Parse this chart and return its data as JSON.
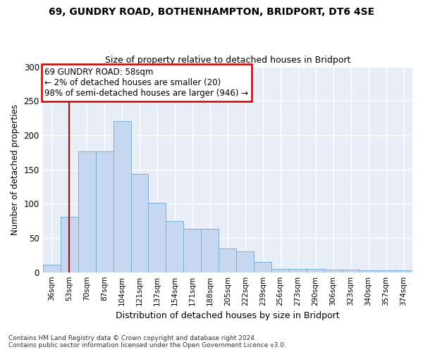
{
  "title1": "69, GUNDRY ROAD, BOTHENHAMPTON, BRIDPORT, DT6 4SE",
  "title2": "Size of property relative to detached houses in Bridport",
  "xlabel": "Distribution of detached houses by size in Bridport",
  "ylabel": "Number of detached properties",
  "categories": [
    "36sqm",
    "53sqm",
    "70sqm",
    "87sqm",
    "104sqm",
    "121sqm",
    "137sqm",
    "154sqm",
    "171sqm",
    "188sqm",
    "205sqm",
    "222sqm",
    "239sqm",
    "256sqm",
    "273sqm",
    "290sqm",
    "306sqm",
    "323sqm",
    "340sqm",
    "357sqm",
    "374sqm"
  ],
  "bar_values": [
    11,
    81,
    176,
    176,
    220,
    143,
    101,
    75,
    63,
    63,
    35,
    30,
    15,
    5,
    5,
    5,
    4,
    4,
    3,
    3,
    3
  ],
  "bar_color": "#c5d8f0",
  "bar_edge_color": "#7bafd4",
  "vline_x": 1,
  "vline_color": "#cc0000",
  "annotation_title": "69 GUNDRY ROAD: 58sqm",
  "annotation_line1": "← 2% of detached houses are smaller (20)",
  "annotation_line2": "98% of semi-detached houses are larger (946) →",
  "annotation_box_color": "#ffffff",
  "annotation_box_edge_color": "#cc0000",
  "ylim": [
    0,
    300
  ],
  "yticks": [
    0,
    50,
    100,
    150,
    200,
    250,
    300
  ],
  "footer1": "Contains HM Land Registry data © Crown copyright and database right 2024.",
  "footer2": "Contains public sector information licensed under the Open Government Licence v3.0.",
  "bg_color": "#ffffff",
  "plot_bg_color": "#e8eef8",
  "grid_color": "#ffffff",
  "title1_fontsize": 10,
  "title2_fontsize": 9
}
